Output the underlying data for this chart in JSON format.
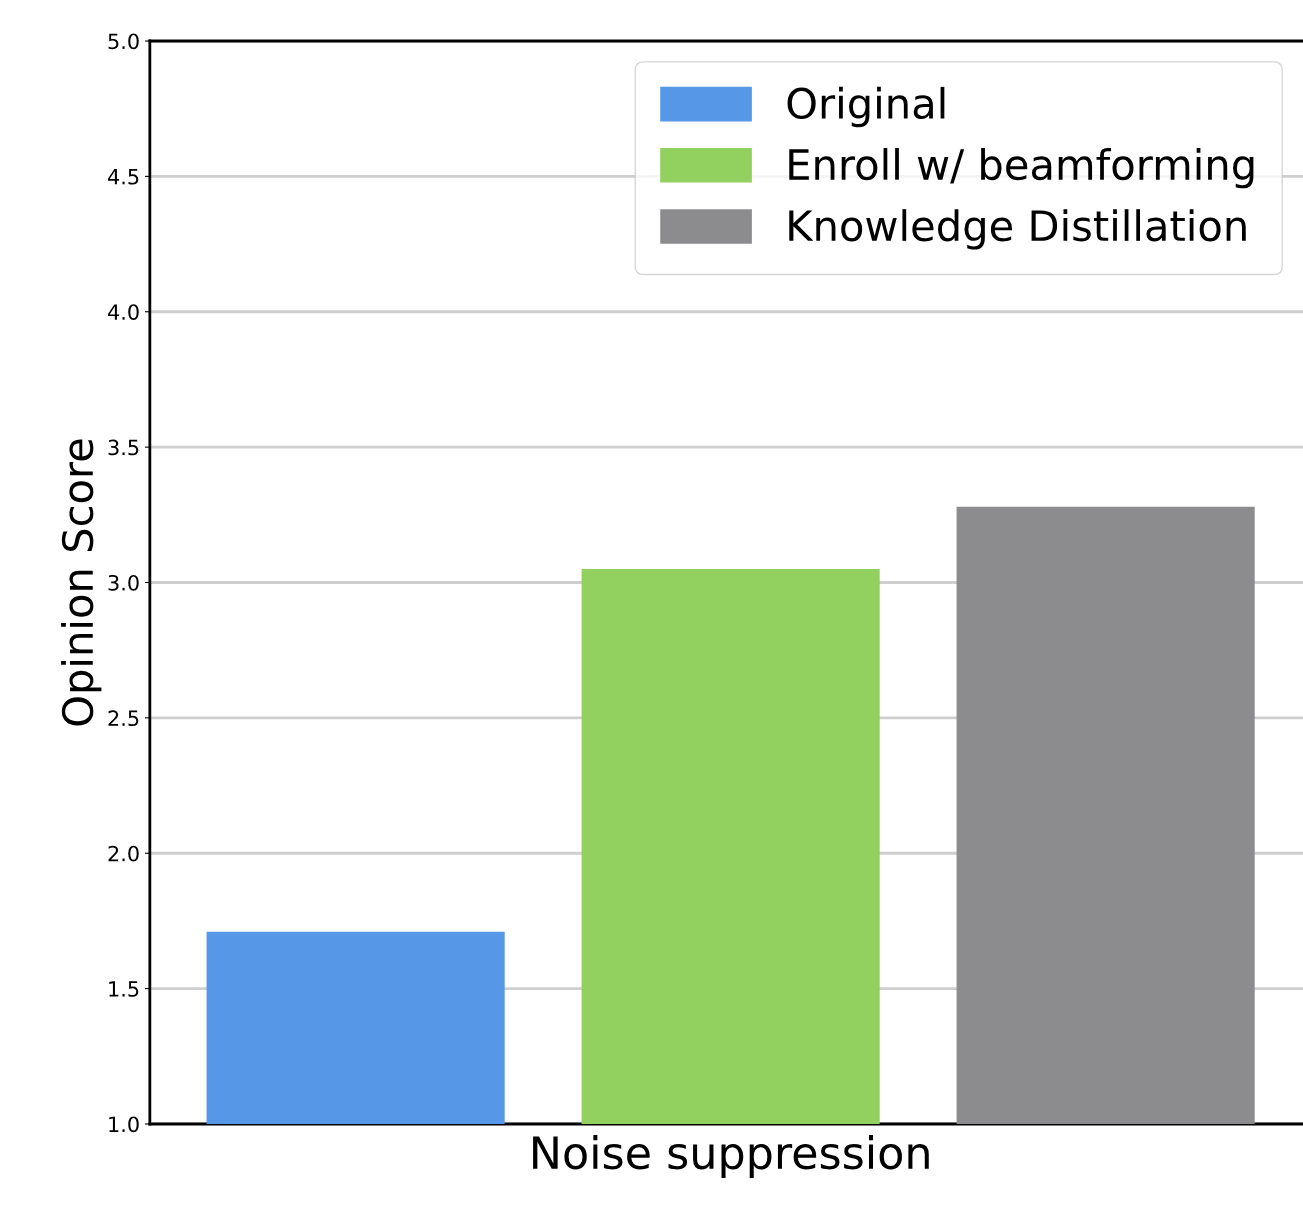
{
  "chart_data": {
    "type": "bar",
    "ylabel": "Opinion Score",
    "categories": [
      "Noise suppression"
    ],
    "series": [
      {
        "name": "Original",
        "color": "#5697e8",
        "values": [
          1.71
        ]
      },
      {
        "name": "Enroll w/ beamforming",
        "color": "#92d060",
        "values": [
          3.05
        ]
      },
      {
        "name": "Knowledge Distillation",
        "color": "#8c8c8e",
        "values": [
          3.28
        ]
      }
    ],
    "ylim": [
      1.0,
      5.0
    ],
    "yticks": [
      {
        "value": 1.0,
        "label": "1.0"
      },
      {
        "value": 1.5,
        "label": "1.5"
      },
      {
        "value": 2.0,
        "label": "2.0"
      },
      {
        "value": 2.5,
        "label": "2.5"
      },
      {
        "value": 3.0,
        "label": "3.0"
      },
      {
        "value": 3.5,
        "label": "3.5"
      },
      {
        "value": 4.0,
        "label": "4.0"
      },
      {
        "value": 4.5,
        "label": "4.5"
      },
      {
        "value": 5.0,
        "label": "5.0"
      }
    ],
    "grid": "y",
    "legend": "top right"
  }
}
